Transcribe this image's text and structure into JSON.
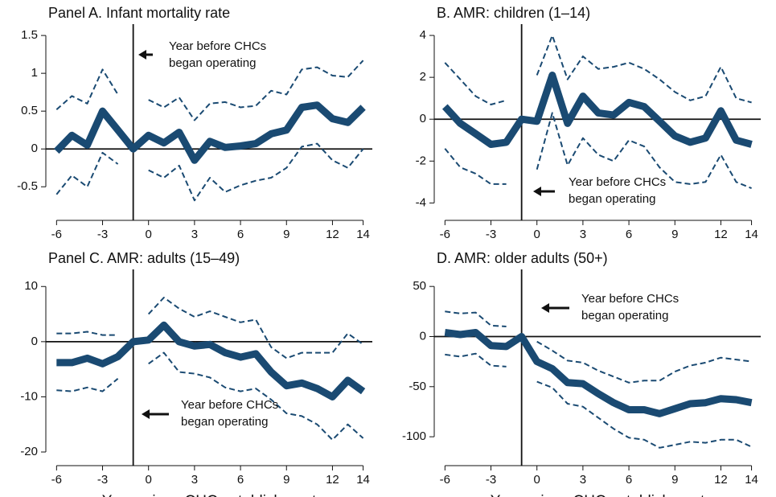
{
  "chart_data": [
    {
      "type": "line",
      "title": "Panel A. Infant mortality rate",
      "annotation": [
        "Year before CHCs",
        "began operating"
      ],
      "x": [
        -6,
        -5,
        -4,
        -3,
        -2,
        -1,
        0,
        1,
        2,
        3,
        4,
        5,
        6,
        7,
        8,
        9,
        10,
        11,
        12,
        13,
        14
      ],
      "series": [
        {
          "color": "#1a4a72",
          "style": "solid",
          "values": [
            -0.03,
            0.18,
            0.05,
            0.5,
            0.25,
            0,
            0.18,
            0.08,
            0.22,
            -0.15,
            0.1,
            0.02,
            0.04,
            0.07,
            0.2,
            0.25,
            0.55,
            0.58,
            0.4,
            0.35,
            0.55
          ]
        },
        {
          "color": "#1a4a72",
          "style": "dashed",
          "values": [
            0.52,
            0.7,
            0.6,
            1.05,
            0.72,
            null,
            0.65,
            0.55,
            0.68,
            0.38,
            0.6,
            0.62,
            0.55,
            0.57,
            0.77,
            0.72,
            1.05,
            1.08,
            0.97,
            0.95,
            1.17
          ]
        },
        {
          "color": "#1a4a72",
          "style": "dashed",
          "values": [
            -0.6,
            -0.35,
            -0.5,
            -0.05,
            -0.2,
            null,
            -0.28,
            -0.38,
            -0.22,
            -0.68,
            -0.38,
            -0.57,
            -0.48,
            -0.42,
            -0.38,
            -0.25,
            0.03,
            0.07,
            -0.15,
            -0.25,
            0.0
          ]
        }
      ],
      "vline": -1,
      "hline": 0,
      "xlim": [
        -6.7,
        14.6
      ],
      "ylim": [
        -0.88,
        1.65
      ],
      "xticks": [
        -6,
        -3,
        0,
        3,
        6,
        9,
        12,
        14
      ],
      "yticks": [
        -0.5,
        0,
        0.5,
        1,
        1.5
      ]
    },
    {
      "type": "line",
      "title": "B. AMR: children (1–14)",
      "annotation": [
        "Year before CHCs",
        "began operating"
      ],
      "x": [
        -6,
        -5,
        -4,
        -3,
        -2,
        -1,
        0,
        1,
        2,
        3,
        4,
        5,
        6,
        7,
        8,
        9,
        10,
        11,
        12,
        13,
        14
      ],
      "series": [
        {
          "color": "#1a4a72",
          "style": "solid",
          "values": [
            0.6,
            -0.2,
            -0.7,
            -1.2,
            -1.1,
            0,
            -0.1,
            2.1,
            -0.2,
            1.1,
            0.3,
            0.2,
            0.8,
            0.6,
            -0.1,
            -0.8,
            -1.1,
            -0.9,
            0.4,
            -1.0,
            -1.2
          ]
        },
        {
          "color": "#1a4a72",
          "style": "dashed",
          "values": [
            2.7,
            1.9,
            1.1,
            0.7,
            0.9,
            null,
            2.1,
            4.0,
            1.9,
            3.0,
            2.4,
            2.5,
            2.7,
            2.4,
            1.9,
            1.3,
            0.9,
            1.1,
            2.5,
            1.0,
            0.8
          ]
        },
        {
          "color": "#1a4a72",
          "style": "dashed",
          "values": [
            -1.4,
            -2.3,
            -2.6,
            -3.1,
            -3.1,
            null,
            -2.4,
            0.3,
            -2.2,
            -0.9,
            -1.7,
            -2.0,
            -1.0,
            -1.3,
            -2.3,
            -3.0,
            -3.1,
            -3.0,
            -1.7,
            -3.0,
            -3.3
          ]
        }
      ],
      "vline": -1,
      "hline": 0,
      "xlim": [
        -6.7,
        14.6
      ],
      "ylim": [
        -4.6,
        4.54
      ],
      "xticks": [
        -6,
        -3,
        0,
        3,
        6,
        9,
        12,
        14
      ],
      "yticks": [
        -4,
        -2,
        0,
        2,
        4
      ]
    },
    {
      "type": "line",
      "title": "Panel C. AMR: adults (15–49)",
      "annotation": [
        "Year before CHCs",
        "began operating"
      ],
      "x_label": "Years since CHC establishment",
      "x": [
        -6,
        -5,
        -4,
        -3,
        -2,
        -1,
        0,
        1,
        2,
        3,
        4,
        5,
        6,
        7,
        8,
        9,
        10,
        11,
        12,
        13,
        14
      ],
      "series": [
        {
          "color": "#1a4a72",
          "style": "solid",
          "values": [
            -3.8,
            -3.8,
            -3,
            -4,
            -2.7,
            0,
            0.3,
            3,
            0,
            -0.8,
            -0.5,
            -2,
            -2.8,
            -2.2,
            -5.5,
            -8,
            -7.5,
            -8.5,
            -10,
            -7,
            -9
          ]
        },
        {
          "color": "#1a4a72",
          "style": "dashed",
          "values": [
            1.5,
            1.5,
            1.8,
            1.2,
            1.2,
            null,
            5,
            8,
            6,
            4.5,
            5.5,
            4.5,
            3.5,
            4,
            -1,
            -3,
            -2,
            -2,
            -2,
            1.5,
            -0.5
          ]
        },
        {
          "color": "#1a4a72",
          "style": "dashed",
          "values": [
            -8.8,
            -9,
            -8.3,
            -9,
            -6.7,
            null,
            -4,
            -2,
            -5.5,
            -5.8,
            -6.5,
            -8.3,
            -9,
            -8.5,
            -10.5,
            -13,
            -13.5,
            -15,
            -17.8,
            -15,
            -17.5
          ]
        }
      ],
      "vline": -1,
      "hline": 0,
      "xlim": [
        -6.7,
        14.6
      ],
      "ylim": [
        -21.6,
        13.1
      ],
      "xticks": [
        -6,
        -3,
        0,
        3,
        6,
        9,
        12,
        14
      ],
      "yticks": [
        -20,
        -10,
        0,
        10
      ]
    },
    {
      "type": "line",
      "title": "D. AMR: older adults (50+)",
      "annotation": [
        "Year before CHCs",
        "began operating"
      ],
      "x_label": "Years since CHC establishment",
      "x": [
        -6,
        -5,
        -4,
        -3,
        -2,
        -1,
        0,
        1,
        2,
        3,
        4,
        5,
        6,
        7,
        8,
        9,
        10,
        11,
        12,
        13,
        14
      ],
      "series": [
        {
          "color": "#1a4a72",
          "style": "solid",
          "values": [
            4,
            2,
            4,
            -9,
            -10,
            0,
            -25,
            -32,
            -46,
            -47,
            -57,
            -66,
            -73,
            -73,
            -77,
            -72,
            -67,
            -66,
            -62,
            -63,
            -66
          ]
        },
        {
          "color": "#1a4a72",
          "style": "dashed",
          "values": [
            25,
            23,
            24,
            11,
            10,
            null,
            -5,
            -14,
            -24,
            -26,
            -34,
            -40,
            -46,
            -44,
            -44,
            -35,
            -29,
            -26,
            -21,
            -23,
            -25
          ]
        },
        {
          "color": "#1a4a72",
          "style": "dashed",
          "values": [
            -18,
            -20,
            -17,
            -29,
            -30,
            null,
            -45,
            -51,
            -67,
            -70,
            -81,
            -92,
            -101,
            -103,
            -111,
            -108,
            -105,
            -106,
            -103,
            -103,
            -110
          ]
        }
      ],
      "vline": -1,
      "hline": 0,
      "xlim": [
        -6.7,
        14.6
      ],
      "ylim": [
        -124,
        67
      ],
      "xticks": [
        -6,
        -3,
        0,
        3,
        6,
        9,
        12,
        14
      ],
      "yticks": [
        -100,
        -50,
        0,
        50
      ]
    }
  ]
}
